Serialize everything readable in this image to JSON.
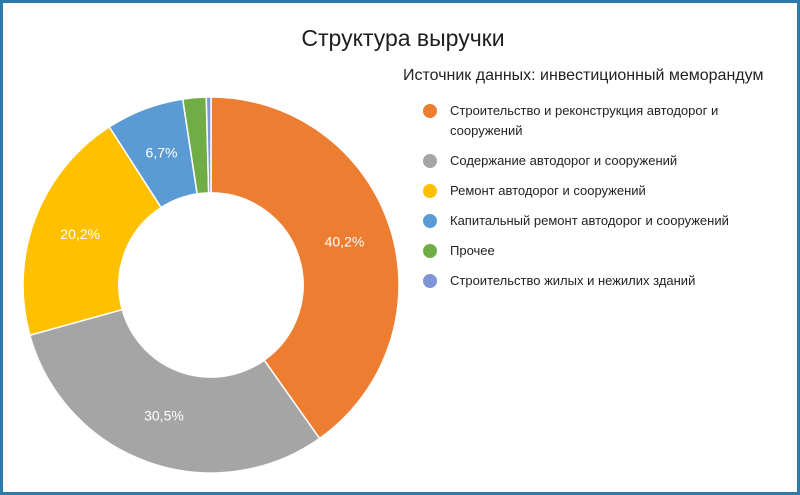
{
  "chart_data": {
    "type": "pie",
    "variant": "donut",
    "title": "Структура выручки",
    "subtitle": "Источник данных: инвестиционный меморандум",
    "legend_position": "right",
    "start_angle_deg": 0,
    "direction": "clockwise",
    "hole_ratio": 0.49,
    "categories": [
      "Строительство и реконструкция автодорог и сооружений",
      "Содержание автодорог и сооружений",
      "Ремонт автодорог и сооружений",
      "Капитальный ремонт автодорог и сооружений",
      "Прочее",
      "Строительство жилых и нежилих зданий"
    ],
    "values": [
      40.2,
      30.5,
      20.2,
      6.7,
      2.0,
      0.4
    ],
    "data_labels": [
      "40,2%",
      "30,5%",
      "20,2%",
      "6,7%",
      "",
      ""
    ],
    "colors": [
      "#ed7d31",
      "#a5a5a5",
      "#ffc000",
      "#5b9bd5",
      "#70ad47",
      "#7f96d4"
    ],
    "series": [
      {
        "values": [
          40.2,
          30.5,
          20.2,
          6.7,
          2.0,
          0.4
        ]
      }
    ]
  },
  "frame_color": "#2e7baa"
}
